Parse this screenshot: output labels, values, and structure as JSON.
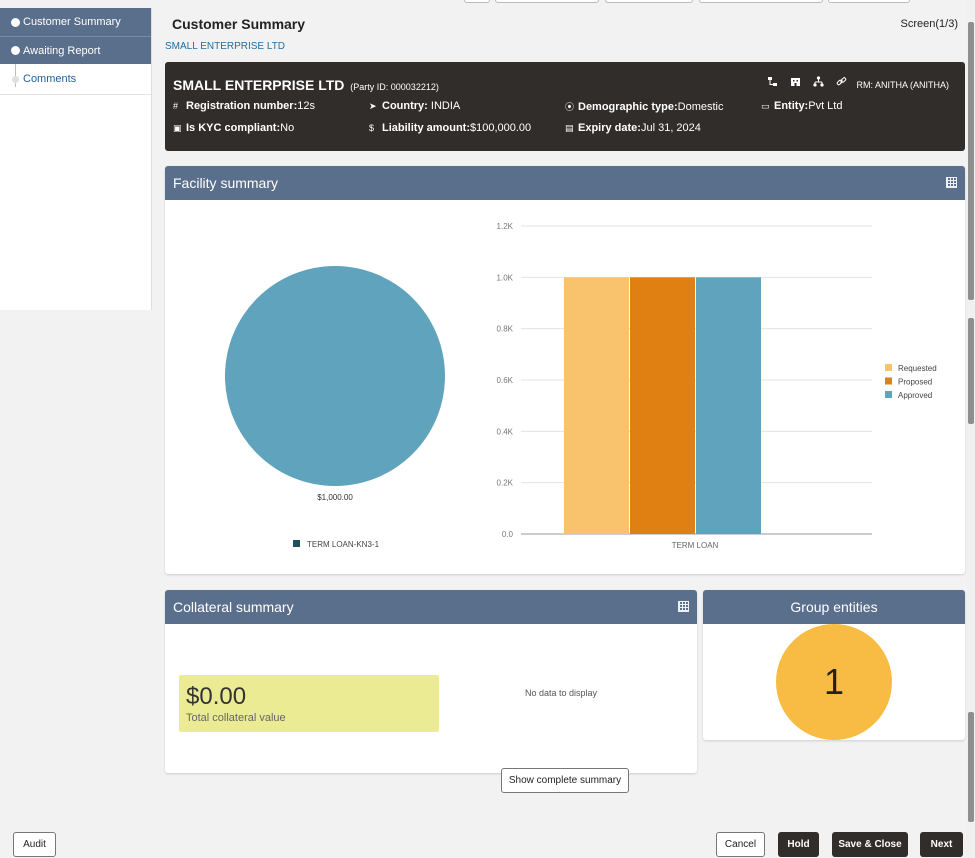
{
  "sidebar": {
    "steps": [
      {
        "label": "Customer Summary"
      },
      {
        "label": "Awaiting Report"
      },
      {
        "label": "Comments"
      }
    ]
  },
  "header": {
    "title": "Customer Summary",
    "screen": "Screen(1/3)",
    "sub_link": "SMALL ENTERPRISE LTD"
  },
  "party": {
    "name": "SMALL ENTERPRISE LTD",
    "party_id": "(Party ID: 000032212)",
    "rm": "RM: ANITHA (ANITHA)",
    "fields": {
      "reg_label": "Registration number:",
      "reg_value": "12s",
      "country_label": "Country:",
      "country_value": " INDIA",
      "demo_label": "Demographic type:",
      "demo_value": "Domestic",
      "entity_label": "Entity:",
      "entity_value": "Pvt Ltd",
      "kyc_label": "Is KYC compliant:",
      "kyc_value": "No",
      "liab_label": "Liability amount:",
      "liab_value": "$100,000.00",
      "exp_label": "Expiry date:",
      "exp_value": "Jul 31, 2024"
    },
    "icons": [
      "hierarchy-icon",
      "building-icon",
      "org-chart-icon",
      "link-icon"
    ]
  },
  "facility": {
    "title": "Facility summary"
  },
  "collateral": {
    "title": "Collateral summary",
    "total_value": "$0.00",
    "total_label": "Total collateral value",
    "no_data": "No data to display"
  },
  "group": {
    "title": "Group entities",
    "count": "1"
  },
  "show_summary": "Show complete summary",
  "footer": {
    "audit": "Audit",
    "cancel": "Cancel",
    "hold": "Hold",
    "save_close": "Save & Close",
    "next": "Next"
  },
  "colors": {
    "header_bar": "#5a6f8c",
    "party_bg": "#312d2a",
    "requested": "#f9c26c",
    "proposed": "#e07f12",
    "approved": "#5fa3bd",
    "group_circle": "#f8bc45",
    "collateral_box": "#ebeb93"
  },
  "chart_data": [
    {
      "type": "pie",
      "slices": [
        {
          "label": "TERM LOAN-KN3-1",
          "value": 1000
        }
      ],
      "slice_labels": [
        "$1,000.00"
      ],
      "legend": [
        "TERM LOAN-KN3-1"
      ]
    },
    {
      "type": "bar",
      "categories": [
        "TERM LOAN"
      ],
      "series": [
        {
          "name": "Requested",
          "values": [
            1000
          ]
        },
        {
          "name": "Proposed",
          "values": [
            1000
          ]
        },
        {
          "name": "Approved",
          "values": [
            1000
          ]
        }
      ],
      "yticks": [
        "0.0",
        "0.2K",
        "0.4K",
        "0.6K",
        "0.8K",
        "1.0K",
        "1.2K"
      ],
      "ylim": [
        0,
        1200
      ],
      "legend_position": "right"
    }
  ]
}
